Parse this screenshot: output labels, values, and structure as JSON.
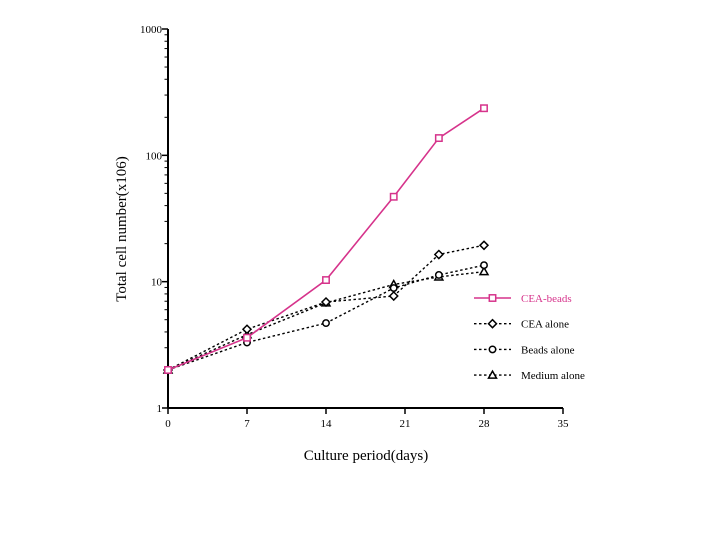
{
  "chart_data": {
    "type": "line",
    "title": "",
    "xlabel": "Culture period(days)",
    "ylabel": "Total cell number(x106)",
    "xlim": [
      0,
      35
    ],
    "ylim": [
      1,
      1000
    ],
    "yscale": "log",
    "x_ticks": [
      0,
      7,
      14,
      21,
      28,
      35
    ],
    "x_tick_labels": [
      "0",
      "7",
      "14",
      "21",
      "28",
      "35"
    ],
    "y_ticks": [
      1,
      10,
      100,
      1000
    ],
    "y_tick_labels": [
      "1",
      "10",
      "100",
      "1000"
    ],
    "grid": false,
    "legend_position": "right",
    "series": [
      {
        "name": "CEA-beads",
        "color": "#d6338b",
        "line": "solid",
        "marker": "square",
        "x": [
          0,
          7,
          14,
          20,
          24,
          28
        ],
        "y": [
          2.0,
          3.6,
          10.3,
          47,
          137,
          236
        ]
      },
      {
        "name": "CEA alone",
        "color": "#000000",
        "line": "dotted",
        "marker": "diamond",
        "x": [
          0,
          7,
          14,
          20,
          24,
          28
        ],
        "y": [
          2.0,
          4.2,
          6.9,
          7.7,
          16.4,
          19.4
        ]
      },
      {
        "name": "Beads alone",
        "color": "#000000",
        "line": "dotted",
        "marker": "circle",
        "x": [
          0,
          7,
          14,
          20,
          24,
          28
        ],
        "y": [
          2.0,
          3.3,
          4.7,
          8.9,
          11.3,
          13.5
        ]
      },
      {
        "name": "Medium alone",
        "color": "#000000",
        "line": "dotted",
        "marker": "triangle",
        "x": [
          0,
          7,
          14,
          20,
          24,
          28
        ],
        "y": [
          2.0,
          3.8,
          6.8,
          9.5,
          10.9,
          12.0
        ]
      }
    ]
  }
}
